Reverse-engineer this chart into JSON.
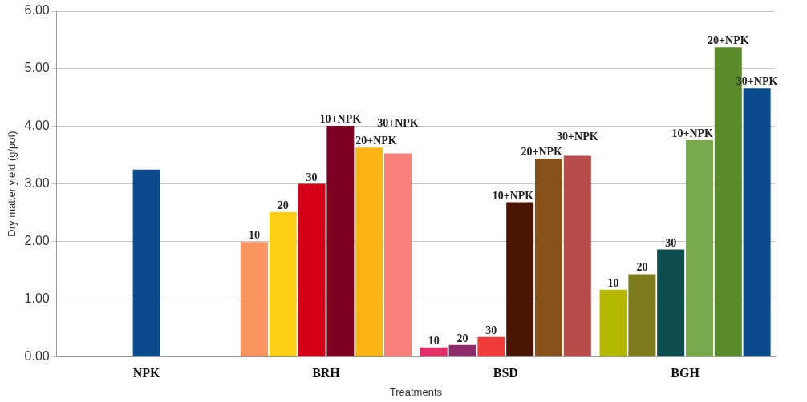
{
  "chart_data": {
    "type": "bar",
    "xlabel": "Treatments",
    "ylabel": "Dry matter yield (g/pot)",
    "categories": [
      "NPK",
      "BRH",
      "BSD",
      "BGH"
    ],
    "ylim": [
      0,
      6
    ],
    "yticks": [
      {
        "value": 0,
        "label": "0.00"
      },
      {
        "value": 1,
        "label": "1.00"
      },
      {
        "value": 2,
        "label": "2.00"
      },
      {
        "value": 3,
        "label": "3.00"
      },
      {
        "value": 4,
        "label": "4.00"
      },
      {
        "value": 5,
        "label": "5.00"
      },
      {
        "value": 6,
        "label": "6.00"
      }
    ],
    "grid": "y",
    "legend": false,
    "series": [
      {
        "color": "#0b4a8c",
        "values": [
          3.25,
          null,
          null,
          null
        ]
      },
      {
        "name": "10",
        "colors": [
          null,
          "#f9935f",
          "#e03067",
          "#b5b800"
        ],
        "values": [
          null,
          1.99,
          0.16,
          1.16
        ]
      },
      {
        "name": "20",
        "colors": [
          null,
          "#fdd017",
          "#8e2c6b",
          "#7c7c1d"
        ],
        "values": [
          null,
          2.51,
          0.2,
          1.43
        ]
      },
      {
        "name": "30",
        "colors": [
          null,
          "#d40018",
          "#f23b3b",
          "#0e4d4d"
        ],
        "values": [
          null,
          3.0,
          0.34,
          1.86
        ]
      },
      {
        "name": "10+NPK",
        "colors": [
          null,
          "#7d0020",
          "#4a1503",
          "#78a94a"
        ],
        "values": [
          null,
          4.01,
          2.68,
          3.76
        ]
      },
      {
        "name": "20+NPK",
        "colors": [
          null,
          "#fdb515",
          "#86501b",
          "#5a8a2a"
        ],
        "values": [
          null,
          3.63,
          3.44,
          5.37
        ]
      },
      {
        "name": "30+NPK",
        "colors": [
          null,
          "#fa7f7a",
          "#b84a4a",
          "#0b4a8c"
        ],
        "values": [
          null,
          3.53,
          3.49,
          4.66
        ]
      }
    ]
  }
}
